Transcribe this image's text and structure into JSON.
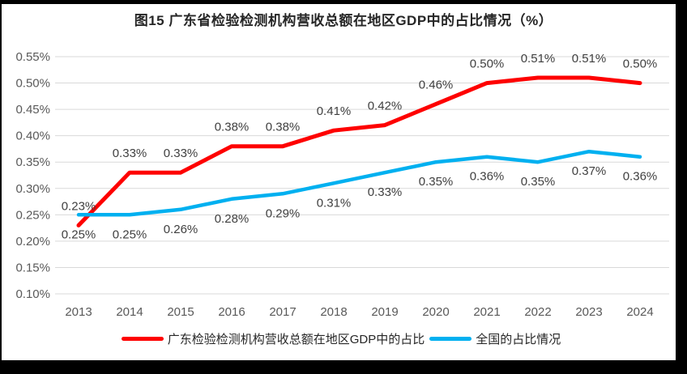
{
  "title": "图15  广东省检验检测机构营收总额在地区GDP中的占比情况（%）",
  "chart_data": {
    "type": "line",
    "title": "图15  广东省检验检测机构营收总额在地区GDP中的占比情况（%）",
    "x": [
      "2013",
      "2014",
      "2015",
      "2016",
      "2017",
      "2018",
      "2019",
      "2020",
      "2021",
      "2022",
      "2023",
      "2024"
    ],
    "ylim": [
      0.1,
      0.55
    ],
    "yticks": [
      {
        "v": 0.55,
        "label": "0.55%"
      },
      {
        "v": 0.5,
        "label": "0.50%"
      },
      {
        "v": 0.45,
        "label": "0.45%"
      },
      {
        "v": 0.4,
        "label": "0.40%"
      },
      {
        "v": 0.35,
        "label": "0.35%"
      },
      {
        "v": 0.3,
        "label": "0.30%"
      },
      {
        "v": 0.25,
        "label": "0.25%"
      },
      {
        "v": 0.2,
        "label": "0.20%"
      },
      {
        "v": 0.15,
        "label": "0.15%"
      },
      {
        "v": 0.1,
        "label": "0.10%"
      }
    ],
    "grid": "horizontal",
    "legend_position": "bottom",
    "series": [
      {
        "name": "广东检验检测机构营收总额在地区GDP中的占比",
        "color": "#fe0000",
        "stroke_width": 5,
        "label_position": "above",
        "values": [
          0.23,
          0.33,
          0.33,
          0.38,
          0.38,
          0.41,
          0.42,
          0.46,
          0.5,
          0.51,
          0.51,
          0.5
        ],
        "labels": [
          "0.23%",
          "0.33%",
          "0.33%",
          "0.38%",
          "0.38%",
          "0.41%",
          "0.42%",
          "0.46%",
          "0.50%",
          "0.51%",
          "0.51%",
          "0.50%"
        ]
      },
      {
        "name": "全国的占比情况",
        "color": "#00b0f0",
        "stroke_width": 4.5,
        "label_position": "below",
        "values": [
          0.25,
          0.25,
          0.26,
          0.28,
          0.29,
          0.31,
          0.33,
          0.35,
          0.36,
          0.35,
          0.37,
          0.36
        ],
        "labels": [
          "0.25%",
          "0.25%",
          "0.26%",
          "0.28%",
          "0.29%",
          "0.31%",
          "0.33%",
          "0.35%",
          "0.36%",
          "0.35%",
          "0.37%",
          "0.36%"
        ]
      }
    ],
    "colors": {
      "grid": "#d9d9d9",
      "tick_text": "#595959",
      "data_label": "#3f3f3f",
      "title_text": "#262626"
    }
  }
}
